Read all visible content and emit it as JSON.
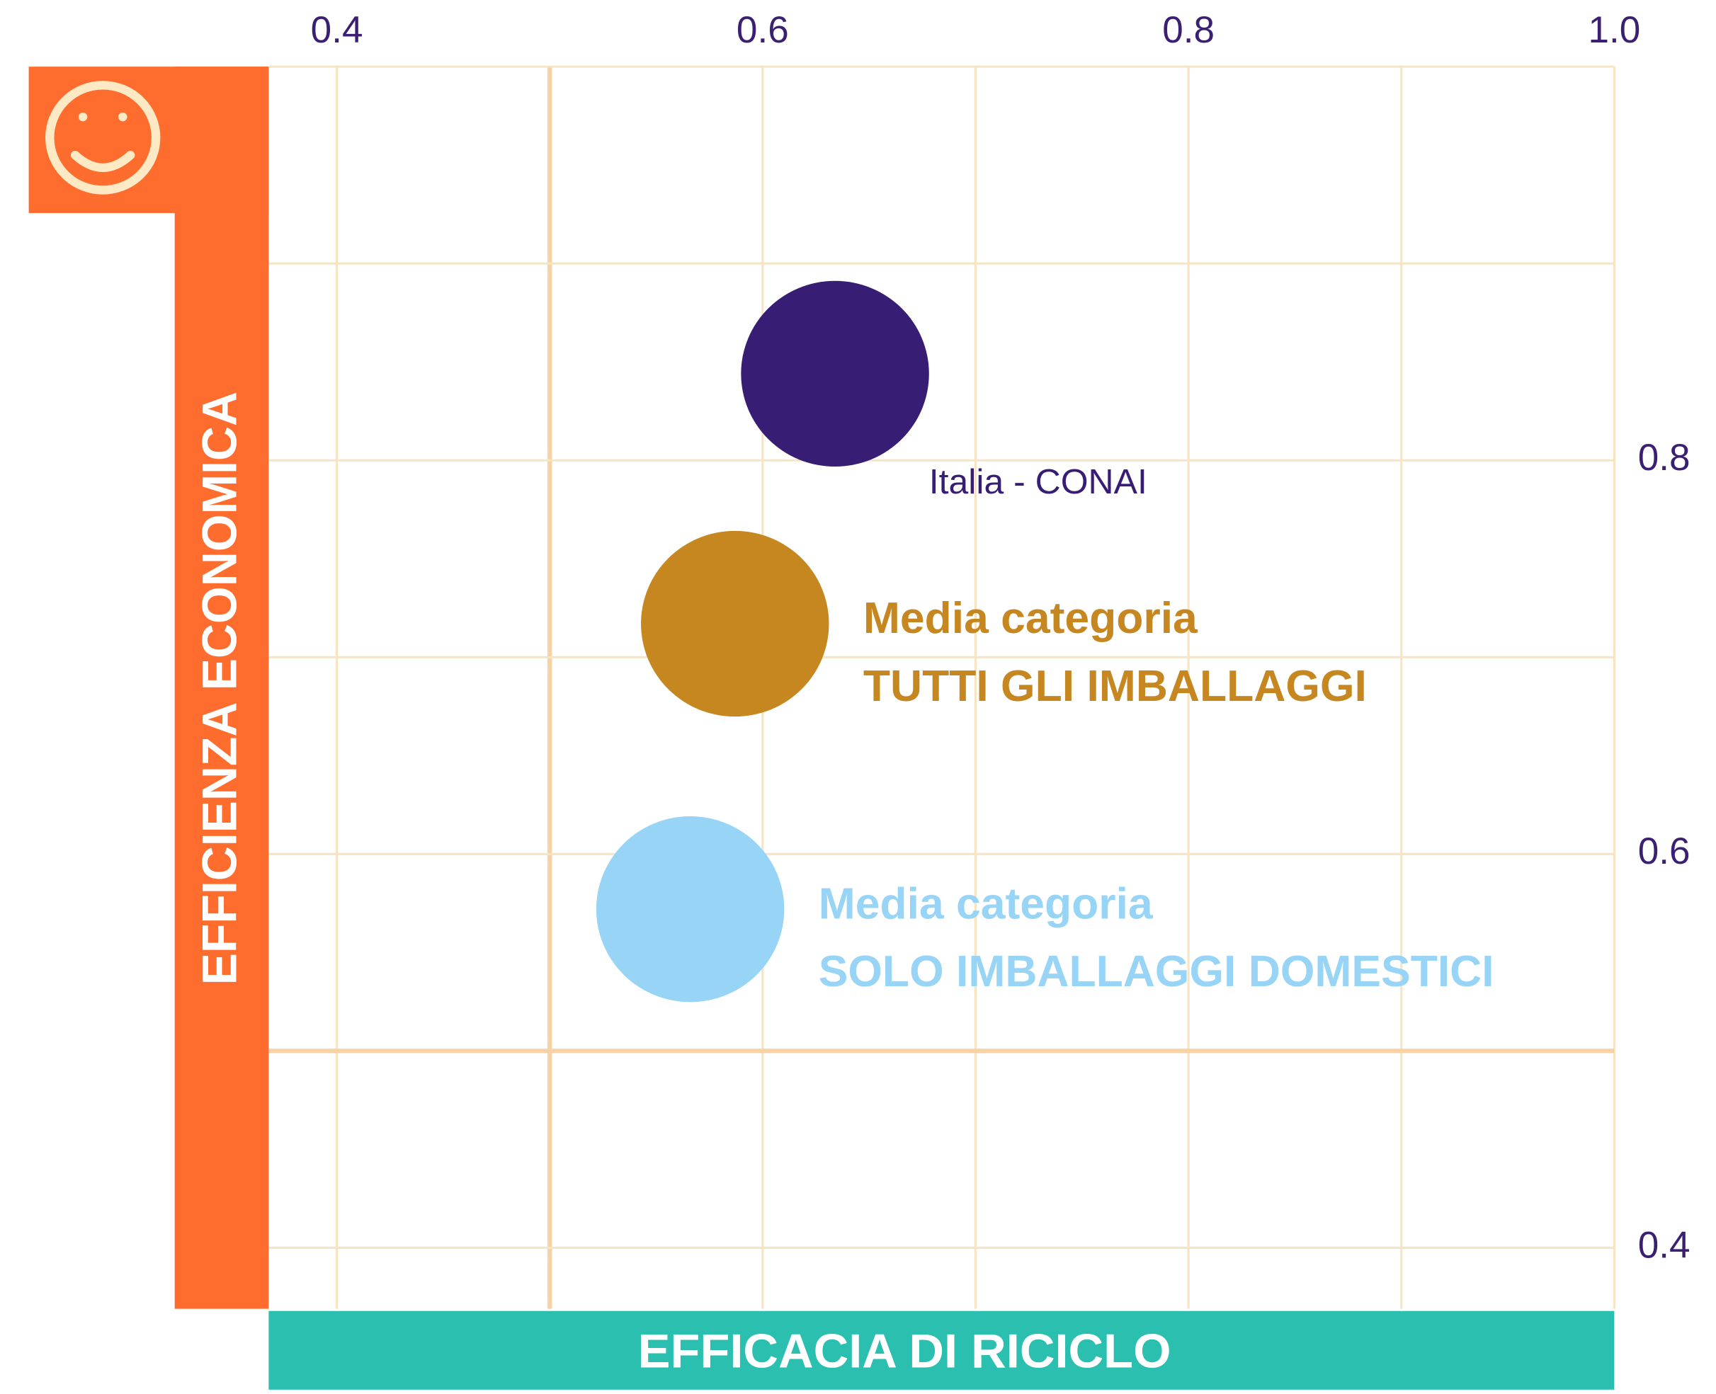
{
  "chart_data": {
    "type": "bubble",
    "xlabel": "EFFICACIA DI RICICLO",
    "ylabel": "EFFICIENZA ECONOMICA",
    "xlim": [
      0.368,
      1.0
    ],
    "ylim": [
      0.369,
      1.0
    ],
    "xticks": [
      0.4,
      0.6,
      0.8,
      {
        "value": 1.0,
        "label": "1.0"
      }
    ],
    "yticks": [
      0.4,
      0.6,
      0.8
    ],
    "xgrid": [
      0.4,
      0.5,
      0.6,
      0.7,
      0.8,
      0.9,
      1.0
    ],
    "ygrid": [
      0.4,
      0.5,
      0.6,
      0.7,
      0.8,
      0.9,
      1.0
    ],
    "x_threshold": 0.5,
    "y_threshold": 0.5,
    "series": [
      {
        "label": [
          "Italia - CONAI"
        ],
        "label_style": "regular",
        "color": "#371d73",
        "x": [
          0.634
        ],
        "y": [
          0.844
        ]
      },
      {
        "label": [
          "Media categoria",
          "TUTTI GLI IMBALLAGGI"
        ],
        "label_style": "bold",
        "color": "#c68720",
        "x": [
          0.587
        ],
        "y": [
          0.717
        ]
      },
      {
        "label": [
          "Media categoria",
          "SOLO IMBALLAGGI DOMESTICI"
        ],
        "label_style": "bold",
        "color": "#97d4f6",
        "x": [
          0.566
        ],
        "y": [
          0.572
        ]
      }
    ]
  }
}
